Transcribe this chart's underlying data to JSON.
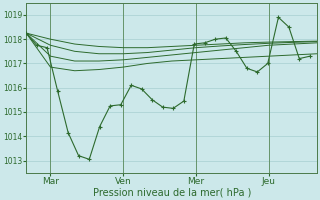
{
  "bg_color": "#cce8ea",
  "grid_color": "#a8cfd1",
  "line_color": "#2d6a2d",
  "xlabel": "Pression niveau de la mer( hPa )",
  "ylim": [
    1012.5,
    1019.5
  ],
  "yticks": [
    1013,
    1014,
    1015,
    1016,
    1017,
    1018,
    1019
  ],
  "x_tick_labels": [
    "Mar",
    "Ven",
    "Mer",
    "Jeu"
  ],
  "x_tick_positions": [
    1,
    4,
    7,
    10
  ],
  "xlim": [
    0,
    12
  ],
  "smooth_lines": [
    [
      1018.25,
      1016.85,
      1016.7,
      1016.75,
      1016.85,
      1017.0,
      1017.1,
      1017.15,
      1017.2,
      1017.25,
      1017.3,
      1017.35,
      1017.4
    ],
    [
      1018.25,
      1017.3,
      1017.1,
      1017.1,
      1017.15,
      1017.25,
      1017.35,
      1017.45,
      1017.55,
      1017.65,
      1017.75,
      1017.8,
      1017.85
    ],
    [
      1018.25,
      1017.75,
      1017.5,
      1017.4,
      1017.4,
      1017.45,
      1017.55,
      1017.65,
      1017.72,
      1017.78,
      1017.83,
      1017.87,
      1017.9
    ],
    [
      1018.25,
      1018.0,
      1017.8,
      1017.7,
      1017.65,
      1017.65,
      1017.7,
      1017.75,
      1017.8,
      1017.85,
      1017.88,
      1017.9,
      1017.92
    ]
  ],
  "smooth_x_end": 12,
  "main_x": [
    0,
    0.43,
    0.86,
    1.3,
    1.73,
    2.16,
    2.6,
    3.03,
    3.46,
    3.9,
    4.33,
    4.76,
    5.2,
    5.63,
    6.06,
    6.5,
    6.93,
    7.36,
    7.8,
    8.23,
    8.66,
    9.1,
    9.53,
    9.96,
    10.4,
    10.83,
    11.26,
    11.7
  ],
  "main_y": [
    1018.25,
    1017.75,
    1017.65,
    1015.85,
    1014.15,
    1013.2,
    1013.05,
    1014.4,
    1015.25,
    1015.3,
    1016.1,
    1015.95,
    1015.5,
    1015.2,
    1015.15,
    1015.45,
    1017.8,
    1017.85,
    1018.0,
    1018.05,
    1017.5,
    1016.8,
    1016.65,
    1017.0,
    1018.9,
    1018.5,
    1017.2,
    1017.3
  ]
}
